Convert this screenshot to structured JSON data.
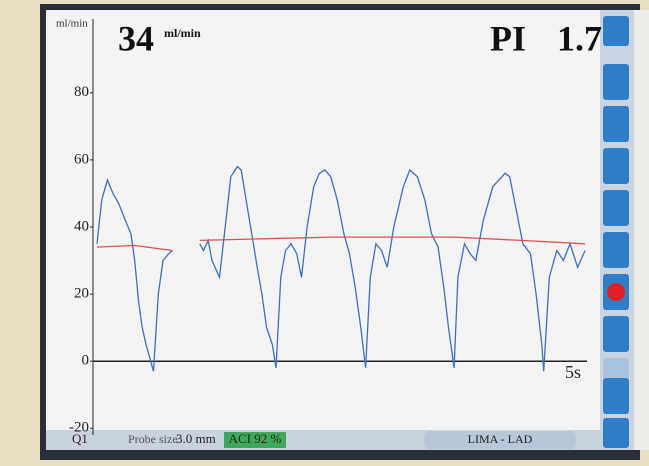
{
  "chart_data": {
    "type": "line",
    "y_label": "ml/min",
    "flow_value": 34,
    "flow_unit": "ml/min",
    "pi_label": "PI",
    "pi_value": 1.7,
    "x_label": "5s",
    "xlim": [
      0,
      5.2
    ],
    "ylim": [
      -22,
      102
    ],
    "yticks": [
      -20,
      0,
      20,
      40,
      60,
      80
    ],
    "grid": false,
    "series": [
      {
        "color": "#3b6fc4",
        "x": [
          0,
          0.05,
          0.11,
          0.17,
          0.23,
          0.3,
          0.36,
          0.4,
          0.44,
          0.48,
          0.52,
          0.6,
          0.65,
          0.7,
          0.76,
          0.8,
          0.9,
          1.09,
          1.13,
          1.18,
          1.22,
          1.3,
          1.36,
          1.42,
          1.49,
          1.53,
          1.6,
          1.66,
          1.7,
          1.75,
          1.8,
          1.86,
          1.9,
          1.95,
          2.0,
          2.06,
          2.12,
          2.17,
          2.23,
          2.3,
          2.36,
          2.42,
          2.48,
          2.55,
          2.62,
          2.68,
          2.74,
          2.8,
          2.85,
          2.9,
          2.96,
          3.02,
          3.08,
          3.15,
          3.25,
          3.32,
          3.4,
          3.48,
          3.55,
          3.62,
          3.68,
          3.73,
          3.79,
          3.83,
          3.9,
          3.96,
          4.02,
          4.1,
          4.2,
          4.33,
          4.38,
          4.45,
          4.52,
          4.6,
          4.66,
          4.72,
          4.74,
          4.8,
          4.88,
          4.95,
          5.02,
          5.1,
          5.18
        ],
        "values": [
          35,
          48,
          54,
          50,
          47,
          42,
          38,
          30,
          18,
          10,
          5,
          -3,
          20,
          30,
          32,
          33,
          null,
          35,
          33,
          36,
          30,
          25,
          40,
          55,
          58,
          57,
          45,
          35,
          28,
          20,
          10,
          5,
          -2,
          25,
          33,
          35,
          32,
          25,
          40,
          52,
          56,
          57,
          55,
          48,
          38,
          32,
          22,
          10,
          -2,
          25,
          35,
          33,
          28,
          40,
          52,
          57,
          55,
          48,
          38,
          34,
          22,
          10,
          -2,
          25,
          35,
          32,
          30,
          42,
          52,
          56,
          55,
          45,
          35,
          32,
          20,
          5,
          -3,
          25,
          33,
          30,
          35,
          28,
          33
        ]
      },
      {
        "color": "#e05050",
        "x": [
          0,
          0.4,
          0.8,
          0.9,
          1.09,
          1.8,
          2.5,
          3.2,
          3.8,
          4.5,
          5.18
        ],
        "values": [
          34,
          34.5,
          33,
          null,
          36,
          36.5,
          37,
          37,
          37,
          36,
          35
        ]
      }
    ]
  },
  "status": {
    "channel": "Q1",
    "probe_label": "Probe size",
    "probe_value": "3.0 mm",
    "aci": "ACI 92 %",
    "vessel": "LIMA - LAD"
  }
}
